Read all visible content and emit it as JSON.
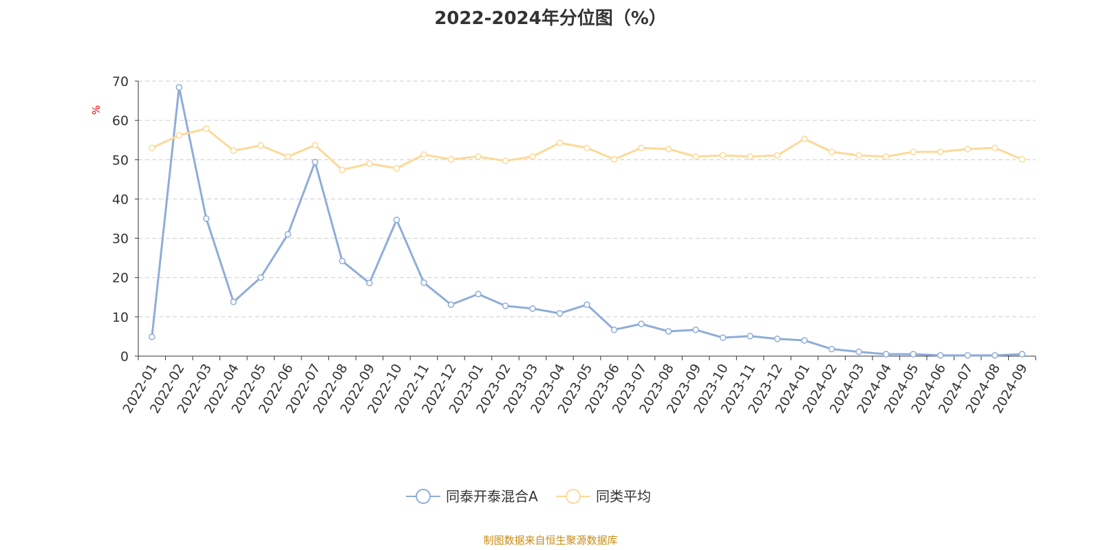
{
  "chart_data": {
    "type": "line",
    "title": "2022-2024年分位图（%）",
    "ylabel": "%",
    "xlabel": "",
    "ylim": [
      0,
      70
    ],
    "yticks": [
      0,
      10,
      20,
      30,
      40,
      50,
      60,
      70
    ],
    "grid": "horizontal dashed",
    "legend_position": "bottom",
    "categories": [
      "2022-01",
      "2022-02",
      "2022-03",
      "2022-04",
      "2022-05",
      "2022-06",
      "2022-07",
      "2022-08",
      "2022-09",
      "2022-10",
      "2022-11",
      "2022-12",
      "2023-01",
      "2023-02",
      "2023-03",
      "2023-04",
      "2023-05",
      "2023-06",
      "2023-07",
      "2023-08",
      "2023-09",
      "2023-10",
      "2023-11",
      "2023-12",
      "2024-01",
      "2024-02",
      "2024-03",
      "2024-04",
      "2024-05",
      "2024-06",
      "2024-07",
      "2024-08",
      "2024-09"
    ],
    "series": [
      {
        "name": "同泰开泰混合A",
        "color": "#8eacd9",
        "values": [
          4.9,
          68.4,
          35.0,
          13.8,
          20.0,
          31.0,
          49.4,
          24.2,
          18.6,
          34.7,
          18.7,
          13.1,
          15.8,
          12.8,
          12.1,
          10.9,
          13.1,
          6.7,
          8.2,
          6.3,
          6.7,
          4.7,
          5.1,
          4.4,
          4.0,
          1.8,
          1.1,
          0.5,
          0.5,
          0.2,
          0.2,
          0.2,
          0.5
        ]
      },
      {
        "name": "同类平均",
        "color": "#fdd997",
        "values": [
          53.0,
          56.2,
          57.9,
          52.3,
          53.6,
          50.8,
          53.7,
          47.4,
          49.0,
          47.8,
          51.3,
          50.1,
          50.8,
          49.7,
          50.8,
          54.3,
          53.0,
          50.1,
          53.0,
          52.7,
          50.8,
          51.1,
          50.8,
          51.1,
          55.3,
          52.0,
          51.1,
          50.8,
          52.0,
          52.0,
          52.7,
          53.0,
          50.1
        ]
      }
    ]
  },
  "footer": "制图数据来自恒生聚源数据库"
}
